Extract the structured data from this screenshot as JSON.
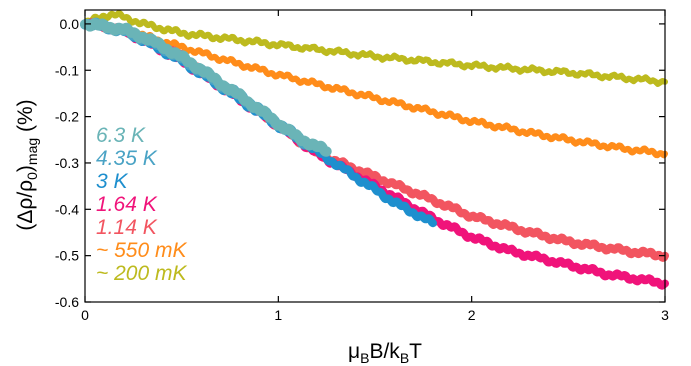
{
  "chart_data": {
    "type": "line",
    "xlabel_parts": {
      "mu": "μ",
      "sub1": "B",
      "mid": "B/k",
      "sub2": "B",
      "end": "T"
    },
    "ylabel_parts": {
      "main": "(Δρ/ρ",
      "sub0": "0",
      "close": ")",
      "sub": "mag",
      "unit": " (%)"
    },
    "xlim": [
      0,
      3
    ],
    "ylim": [
      -0.6,
      0.03
    ],
    "x_ticks": [
      0,
      1,
      2,
      3
    ],
    "x_tick_labels": [
      "0",
      "1",
      "2",
      "3"
    ],
    "y_ticks": [
      0,
      -0.1,
      -0.2,
      -0.3,
      -0.4,
      -0.5,
      -0.6
    ],
    "y_tick_labels": [
      "0.0",
      "-0.1",
      "-0.2",
      "-0.3",
      "-0.4",
      "-0.5",
      "-0.6"
    ],
    "grid": false,
    "legend_position": "left",
    "series": [
      {
        "name": "~ 200 mK",
        "color": "#BDBA1E",
        "width": 6,
        "x": [
          0.0,
          0.05,
          0.1,
          0.15,
          0.2,
          0.3,
          0.4,
          0.5,
          0.7,
          1.0,
          1.5,
          2.0,
          2.5,
          3.0
        ],
        "y": [
          0.0,
          0.01,
          0.018,
          0.02,
          0.015,
          0.0,
          -0.01,
          -0.02,
          -0.03,
          -0.045,
          -0.07,
          -0.09,
          -0.105,
          -0.125
        ]
      },
      {
        "name": "~ 550 mK",
        "color": "#FF8C1A",
        "width": 6,
        "x": [
          0.0,
          0.1,
          0.2,
          0.3,
          0.5,
          0.7,
          1.0,
          1.3,
          1.5,
          1.8,
          2.0,
          2.3,
          2.5,
          2.8,
          3.0
        ],
        "y": [
          0.0,
          -0.005,
          -0.015,
          -0.025,
          -0.05,
          -0.075,
          -0.11,
          -0.14,
          -0.16,
          -0.19,
          -0.21,
          -0.235,
          -0.25,
          -0.27,
          -0.28
        ]
      },
      {
        "name": "1.14 K",
        "color": "#F25560",
        "width": 8,
        "x": [
          0.0,
          0.1,
          0.2,
          0.3,
          0.5,
          0.7,
          1.0,
          1.2,
          1.5,
          1.8,
          2.0,
          2.3,
          2.5,
          2.8,
          3.0
        ],
        "y": [
          0.0,
          -0.005,
          -0.015,
          -0.03,
          -0.07,
          -0.13,
          -0.22,
          -0.28,
          -0.33,
          -0.38,
          -0.415,
          -0.45,
          -0.47,
          -0.49,
          -0.5
        ]
      },
      {
        "name": "1.64 K",
        "color": "#F0137A",
        "width": 8,
        "x": [
          0.0,
          0.1,
          0.2,
          0.3,
          0.5,
          0.7,
          1.0,
          1.2,
          1.5,
          1.8,
          2.0,
          2.2,
          2.5,
          2.7,
          3.0
        ],
        "y": [
          0.0,
          -0.005,
          -0.015,
          -0.035,
          -0.08,
          -0.135,
          -0.22,
          -0.28,
          -0.35,
          -0.42,
          -0.46,
          -0.49,
          -0.52,
          -0.54,
          -0.56
        ]
      },
      {
        "name": "3 K",
        "color": "#1E8FCE",
        "width": 8,
        "x": [
          0.0,
          0.1,
          0.2,
          0.3,
          0.5,
          0.7,
          1.0,
          1.2,
          1.4,
          1.6,
          1.8
        ],
        "y": [
          0.0,
          -0.005,
          -0.015,
          -0.035,
          -0.08,
          -0.135,
          -0.22,
          -0.275,
          -0.33,
          -0.385,
          -0.43
        ]
      },
      {
        "name": "4.35 K",
        "color": "#4AA3C5",
        "width": 10,
        "x": [
          0.0,
          0.1,
          0.2,
          0.3,
          0.4,
          0.5,
          0.6,
          0.7,
          0.8,
          0.9,
          1.0,
          1.1,
          1.15
        ],
        "y": [
          0.0,
          -0.005,
          -0.015,
          -0.03,
          -0.05,
          -0.075,
          -0.1,
          -0.13,
          -0.155,
          -0.185,
          -0.215,
          -0.245,
          -0.26
        ]
      },
      {
        "name": "6.3 K",
        "color": "#6AB4B7",
        "width": 10,
        "x": [
          0.0,
          0.1,
          0.2,
          0.3,
          0.4,
          0.5,
          0.6,
          0.7,
          0.8,
          0.9,
          1.0,
          1.1,
          1.2,
          1.25
        ],
        "y": [
          0.0,
          -0.005,
          -0.012,
          -0.028,
          -0.048,
          -0.072,
          -0.098,
          -0.128,
          -0.155,
          -0.185,
          -0.215,
          -0.245,
          -0.265,
          -0.275
        ]
      }
    ],
    "legend_entries": [
      {
        "label": "6.3 K",
        "color": "#6AB4B7"
      },
      {
        "label": "4.35 K",
        "color": "#4AA3C5"
      },
      {
        "label": "3 K",
        "color": "#1E8FCE"
      },
      {
        "label": "1.64 K",
        "color": "#F0137A"
      },
      {
        "label": "1.14 K",
        "color": "#F25560"
      },
      {
        "label": "~ 550 mK",
        "color": "#FF8C1A"
      },
      {
        "label": "~ 200 mK",
        "color": "#BDBA1E"
      }
    ]
  }
}
